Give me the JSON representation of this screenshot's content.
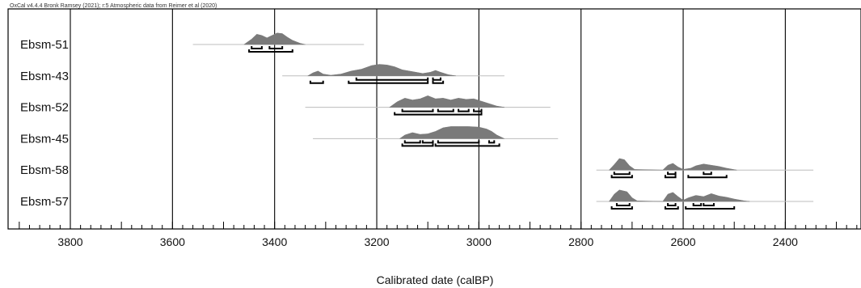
{
  "chart_data": {
    "type": "multiple-plot",
    "credit": "OxCal v4.4.4 Bronk Ramsey (2021); r:5 Atmospheric data from Reimer et al (2020)",
    "xlabel": "Calibrated date (calBP)",
    "xlim": [
      3900,
      2250
    ],
    "x_reversed": true,
    "ticks": [
      "3800",
      "3600",
      "3400",
      "3200",
      "3000",
      "2800",
      "2600",
      "2400"
    ],
    "tick_values": [
      3800,
      3600,
      3400,
      3200,
      3000,
      2800,
      2600,
      2400
    ],
    "minor_tick_step": 20,
    "gridlines": [
      3800,
      3600,
      3400,
      3200,
      3000,
      2800,
      2600,
      2400
    ],
    "colors": {
      "distribution": "#7a7a7a",
      "range_line": "#bdbdbd",
      "bar": "#000000",
      "grid": "#000000"
    },
    "series": [
      {
        "name": "Ebsm-51",
        "range": [
          3560,
          3225
        ],
        "distribution": [
          [
            3460,
            0
          ],
          [
            3445,
            0.45
          ],
          [
            3435,
            0.85
          ],
          [
            3425,
            0.75
          ],
          [
            3415,
            0.55
          ],
          [
            3405,
            0.75
          ],
          [
            3395,
            0.95
          ],
          [
            3385,
            0.9
          ],
          [
            3375,
            0.6
          ],
          [
            3365,
            0.35
          ],
          [
            3350,
            0.1
          ],
          [
            3340,
            0
          ]
        ],
        "sigma1": [
          [
            3445,
            3425
          ],
          [
            3410,
            3385
          ]
        ],
        "sigma2": [
          [
            3450,
            3365
          ]
        ]
      },
      {
        "name": "Ebsm-43",
        "range": [
          3385,
          2950
        ],
        "distribution": [
          [
            3335,
            0
          ],
          [
            3325,
            0.25
          ],
          [
            3315,
            0.4
          ],
          [
            3305,
            0.15
          ],
          [
            3290,
            0.05
          ],
          [
            3270,
            0.15
          ],
          [
            3250,
            0.4
          ],
          [
            3230,
            0.55
          ],
          [
            3210,
            0.85
          ],
          [
            3195,
            0.95
          ],
          [
            3180,
            0.9
          ],
          [
            3165,
            0.75
          ],
          [
            3150,
            0.5
          ],
          [
            3130,
            0.35
          ],
          [
            3110,
            0.2
          ],
          [
            3095,
            0.3
          ],
          [
            3085,
            0.45
          ],
          [
            3075,
            0.3
          ],
          [
            3060,
            0.1
          ],
          [
            3045,
            0
          ]
        ],
        "sigma1": [
          [
            3240,
            3100
          ],
          [
            3090,
            3075
          ]
        ],
        "sigma2": [
          [
            3330,
            3305
          ],
          [
            3255,
            3100
          ],
          [
            3090,
            3070
          ]
        ]
      },
      {
        "name": "Ebsm-52",
        "range": [
          3340,
          2860
        ],
        "distribution": [
          [
            3175,
            0
          ],
          [
            3160,
            0.45
          ],
          [
            3145,
            0.75
          ],
          [
            3130,
            0.6
          ],
          [
            3115,
            0.7
          ],
          [
            3100,
            0.95
          ],
          [
            3085,
            0.7
          ],
          [
            3070,
            0.75
          ],
          [
            3055,
            0.6
          ],
          [
            3040,
            0.75
          ],
          [
            3025,
            0.65
          ],
          [
            3010,
            0.7
          ],
          [
            2995,
            0.5
          ],
          [
            2980,
            0.3
          ],
          [
            2965,
            0.1
          ],
          [
            2950,
            0
          ]
        ],
        "sigma1": [
          [
            3150,
            3090
          ],
          [
            3080,
            3050
          ],
          [
            3040,
            3020
          ],
          [
            3010,
            2995
          ]
        ],
        "sigma2": [
          [
            3165,
            2995
          ]
        ]
      },
      {
        "name": "Ebsm-45",
        "range": [
          3325,
          2845
        ],
        "distribution": [
          [
            3155,
            0
          ],
          [
            3145,
            0.3
          ],
          [
            3130,
            0.5
          ],
          [
            3115,
            0.35
          ],
          [
            3100,
            0.4
          ],
          [
            3085,
            0.6
          ],
          [
            3070,
            0.9
          ],
          [
            3055,
            1
          ],
          [
            3040,
            1
          ],
          [
            3020,
            1
          ],
          [
            3000,
            0.95
          ],
          [
            2985,
            0.8
          ],
          [
            2975,
            0.6
          ],
          [
            2965,
            0.3
          ],
          [
            2950,
            0
          ]
        ],
        "sigma1": [
          [
            3145,
            3115
          ],
          [
            3110,
            3090
          ],
          [
            3080,
            3000
          ],
          [
            2980,
            2970
          ]
        ],
        "sigma2": [
          [
            3150,
            3090
          ],
          [
            3085,
            2960
          ]
        ]
      },
      {
        "name": "Ebsm-58",
        "range": [
          2770,
          2345
        ],
        "distribution": [
          [
            2745,
            0
          ],
          [
            2735,
            0.45
          ],
          [
            2725,
            0.95
          ],
          [
            2715,
            0.85
          ],
          [
            2705,
            0.35
          ],
          [
            2695,
            0.05
          ],
          [
            2640,
            0
          ],
          [
            2630,
            0.4
          ],
          [
            2620,
            0.55
          ],
          [
            2610,
            0.25
          ],
          [
            2600,
            0.05
          ],
          [
            2585,
            0.15
          ],
          [
            2575,
            0.35
          ],
          [
            2560,
            0.5
          ],
          [
            2545,
            0.4
          ],
          [
            2530,
            0.3
          ],
          [
            2515,
            0.15
          ],
          [
            2495,
            0
          ]
        ],
        "sigma1": [
          [
            2735,
            2705
          ],
          [
            2630,
            2615
          ],
          [
            2560,
            2545
          ]
        ],
        "sigma2": [
          [
            2740,
            2700
          ],
          [
            2635,
            2615
          ],
          [
            2590,
            2515
          ]
        ]
      },
      {
        "name": "Ebsm-57",
        "range": [
          2770,
          2345
        ],
        "distribution": [
          [
            2745,
            0
          ],
          [
            2735,
            0.6
          ],
          [
            2725,
            0.95
          ],
          [
            2710,
            0.8
          ],
          [
            2700,
            0.3
          ],
          [
            2690,
            0.05
          ],
          [
            2640,
            0
          ],
          [
            2630,
            0.6
          ],
          [
            2620,
            0.75
          ],
          [
            2610,
            0.4
          ],
          [
            2600,
            0.1
          ],
          [
            2590,
            0.3
          ],
          [
            2575,
            0.5
          ],
          [
            2560,
            0.4
          ],
          [
            2545,
            0.65
          ],
          [
            2530,
            0.45
          ],
          [
            2515,
            0.35
          ],
          [
            2500,
            0.2
          ],
          [
            2480,
            0.05
          ],
          [
            2470,
            0
          ]
        ],
        "sigma1": [
          [
            2730,
            2705
          ],
          [
            2630,
            2615
          ],
          [
            2580,
            2565
          ],
          [
            2560,
            2540
          ]
        ],
        "sigma2": [
          [
            2740,
            2700
          ],
          [
            2635,
            2610
          ],
          [
            2595,
            2500
          ]
        ]
      }
    ]
  }
}
